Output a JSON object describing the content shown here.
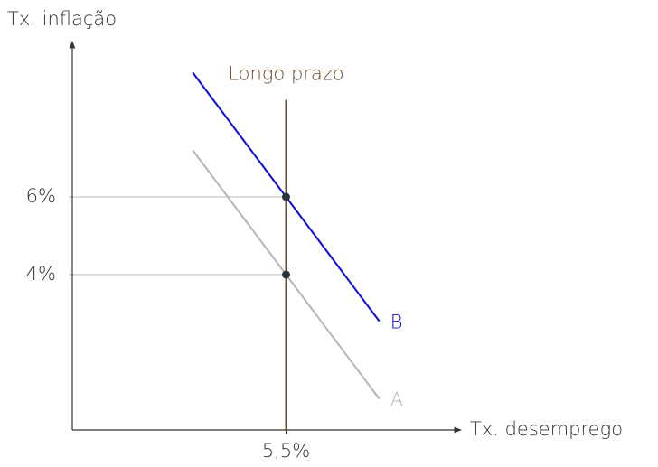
{
  "chart_data": {
    "type": "line",
    "x_label": "Tx. desemprego",
    "y_label": "Tx. inflação",
    "xlim": [
      0,
      10
    ],
    "ylim": [
      0,
      10
    ],
    "xticks": [
      {
        "value": 5.5,
        "label": "5,5%"
      }
    ],
    "yticks": [
      {
        "value": 4,
        "label": "4%"
      },
      {
        "value": 6,
        "label": "6%"
      }
    ],
    "series": [
      {
        "name": "A",
        "color": "#b5b5b5",
        "x": [
          3.1,
          5.5,
          7.9
        ],
        "values": [
          7.2,
          4,
          0.8
        ]
      },
      {
        "name": "B",
        "color": "#0a0ad6",
        "x": [
          3.1,
          5.5,
          7.9
        ],
        "values": [
          9.2,
          6,
          2.8
        ]
      },
      {
        "name": "Longo prazo",
        "color": "#6e4b2c",
        "x": [
          5.5,
          5.5
        ],
        "values": [
          0,
          8.5
        ]
      }
    ]
  }
}
